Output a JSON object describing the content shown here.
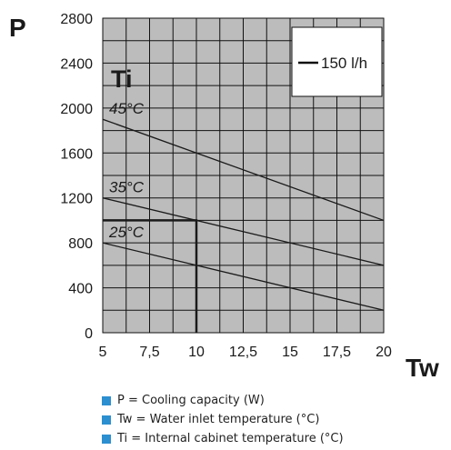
{
  "chart_data": {
    "type": "line",
    "ylabel": "P",
    "xlabel": "Tw",
    "series_group_label": "Ti",
    "xlim": [
      5,
      20
    ],
    "ylim": [
      0,
      2800
    ],
    "x_ticks": [
      5,
      7.5,
      10,
      12.5,
      15,
      17.5,
      20
    ],
    "x_tick_labels": [
      "5",
      "7,5",
      "10",
      "12,5",
      "15",
      "17,5",
      "20"
    ],
    "y_ticks": [
      0,
      400,
      800,
      1200,
      1600,
      2000,
      2400,
      2800
    ],
    "y_tick_labels": [
      "0",
      "400",
      "800",
      "1200",
      "1600",
      "2000",
      "2400",
      "2800"
    ],
    "grid": true,
    "series": [
      {
        "name": "45°C",
        "x": [
          5,
          20
        ],
        "y": [
          1900,
          1000
        ]
      },
      {
        "name": "35°C",
        "x": [
          5,
          20
        ],
        "y": [
          1200,
          600
        ]
      },
      {
        "name": "25°C",
        "x": [
          5,
          20
        ],
        "y": [
          800,
          200
        ]
      }
    ],
    "example_line": {
      "x": 10,
      "y": 1000
    },
    "legend": {
      "label": "150 l/h",
      "placement": "top-right"
    }
  },
  "notes": [
    "P = Cooling capacity (W)",
    "Tw = Water inlet temperature (°C)",
    "Ti = Internal cabinet temperature (°C)"
  ],
  "colors": {
    "plot_background": "#bcbcbc",
    "grid": "#111111",
    "curve": "#1a1a1a",
    "note_square": "#2b8fd0"
  }
}
